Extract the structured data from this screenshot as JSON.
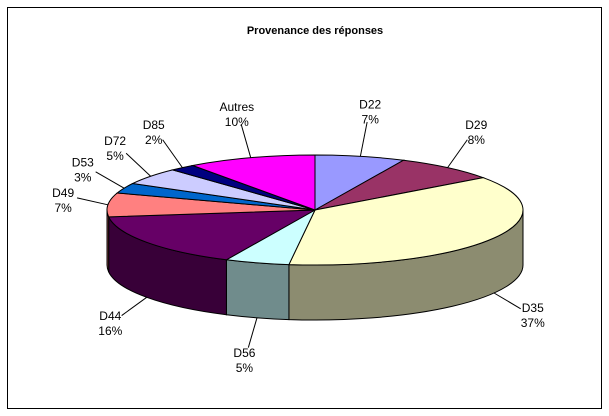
{
  "chart_data": {
    "type": "pie3d",
    "title": "Provenance des réponses",
    "categories": [
      "D22",
      "D29",
      "D35",
      "D56",
      "D44",
      "D49",
      "D53",
      "D72",
      "D85",
      "Autres"
    ],
    "values": [
      7,
      8,
      37,
      5,
      16,
      7,
      3,
      5,
      2,
      10
    ],
    "value_labels": [
      "7%",
      "8%",
      "37%",
      "5%",
      "16%",
      "7%",
      "3%",
      "5%",
      "2%",
      "10%"
    ],
    "colors": [
      "#9999ff",
      "#993366",
      "#ffffcc",
      "#ccffff",
      "#660066",
      "#ff8080",
      "#0066cc",
      "#ccccff",
      "#000080",
      "#ff00ff"
    ]
  }
}
